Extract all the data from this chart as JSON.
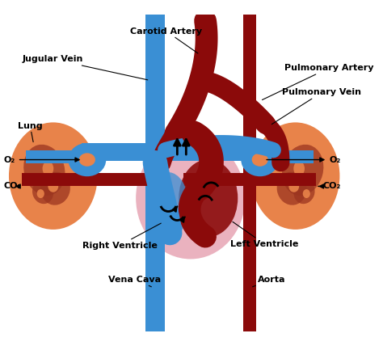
{
  "bg_color": "#ffffff",
  "lung_color": "#e8834a",
  "lung_dark": "#9b3520",
  "blue_vessel": "#3a8fd4",
  "blue_dark": "#2060a0",
  "red_vessel": "#8b0a0a",
  "red_light": "#a01820",
  "heart_pink": "#e8aab8",
  "heart_red": "#8b0a0a",
  "text_color": "#000000",
  "labels": {
    "carotid_artery": "Carotid Artery",
    "jugular_vein": "Jugular Vein",
    "pulmonary_artery": "Pulmonary Artery",
    "pulmonary_vein": "Pulmonary Vein",
    "lung": "Lung",
    "o2_left": "O₂",
    "co2_left": "CO₂",
    "o2_right": "O₂",
    "co2_right": "CO₂",
    "right_ventricle": "Right Ventricle",
    "left_ventricle": "Left Ventricle",
    "vena_cava": "Vena Cava",
    "aorta": "Aorta"
  },
  "figsize": [
    4.74,
    4.28
  ],
  "dpi": 100
}
